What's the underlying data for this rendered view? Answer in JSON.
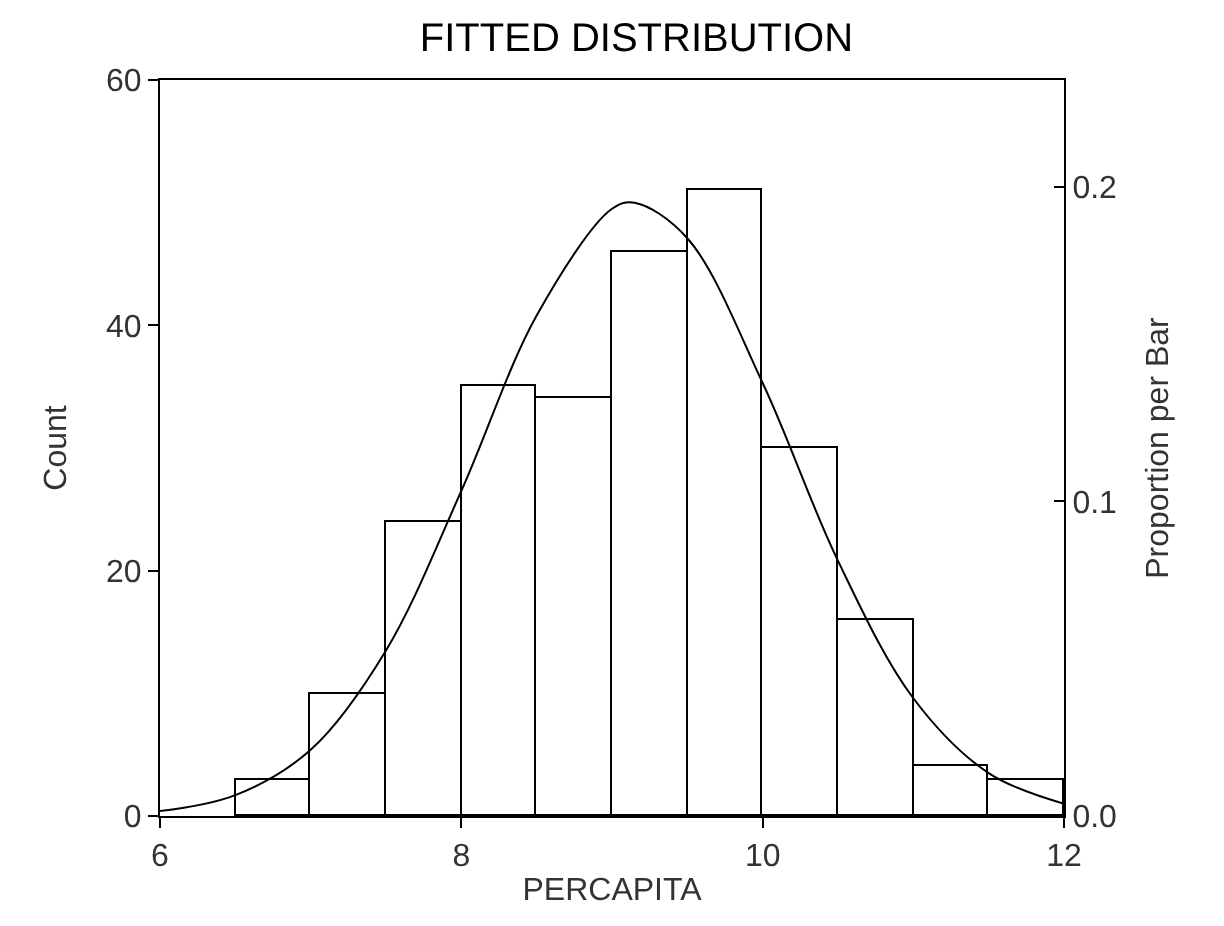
{
  "chart_data": {
    "type": "histogram",
    "title": "FITTED DISTRIBUTION",
    "xlabel": "PERCAPITA",
    "ylabel": "Count",
    "y2label": "Proportion per Bar",
    "bins": [
      6.5,
      7,
      7.5,
      8,
      8.5,
      9,
      9.5,
      10,
      10.5,
      11,
      11.5,
      12
    ],
    "values": [
      3,
      10,
      24,
      35,
      34,
      46,
      51,
      30,
      16,
      4,
      3
    ],
    "color": "#ffffff",
    "series": [
      {
        "type": "line",
        "color": "#000000",
        "x": [
          6,
          6.5,
          7,
          7.5,
          8,
          8.5,
          9,
          9.15,
          9.5,
          10,
          10.5,
          11,
          11.5,
          12
        ],
        "values": [
          0.4,
          1.7,
          5.4,
          13.5,
          26.5,
          40.8,
          49.5,
          50,
          47.1,
          35.3,
          20.8,
          9.6,
          3.5,
          1.0
        ]
      }
    ],
    "xlim": [
      6,
      12
    ],
    "xticks": [
      6,
      8,
      10,
      12
    ],
    "ylim": [
      0,
      60
    ],
    "yticks": [
      0,
      20,
      40,
      60
    ],
    "y2lim": [
      0,
      0.234
    ],
    "y2ticks": [
      {
        "value": 0,
        "label": "0.0"
      },
      {
        "value": 0.1,
        "label": "0.1"
      },
      {
        "value": 0.2,
        "label": "0.2"
      }
    ],
    "marker": "none",
    "line_style": "solid"
  }
}
